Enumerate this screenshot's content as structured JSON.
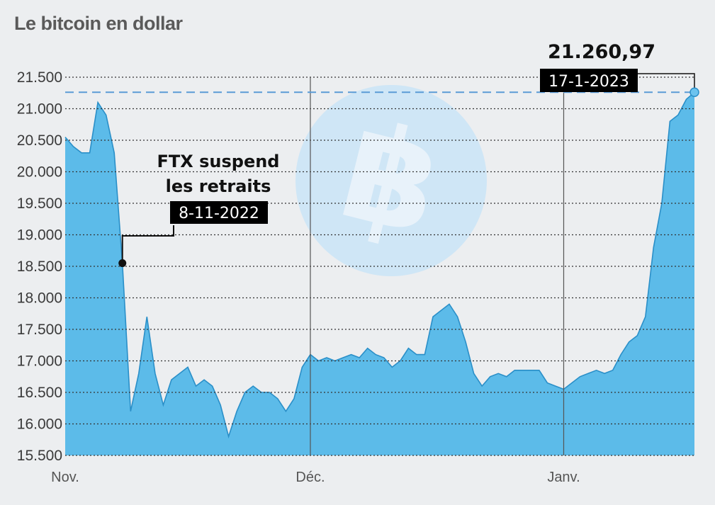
{
  "chart_data": {
    "type": "area",
    "title": "Le bitcoin en dollar",
    "ylim": [
      15500,
      21700
    ],
    "yticks": [
      21500,
      21000,
      20500,
      20000,
      19500,
      19000,
      18500,
      18000,
      17500,
      17000,
      16500,
      16000,
      15500
    ],
    "ytick_labels": [
      "21.500",
      "21.000",
      "20.500",
      "20.000",
      "19.500",
      "19.000",
      "18.500",
      "18.000",
      "17.500",
      "17.000",
      "16.500",
      "16.000",
      "15.500"
    ],
    "xlim": [
      "2022-11-01",
      "2023-01-17"
    ],
    "xticks": [
      {
        "date": "2022-11-01",
        "label": "Nov."
      },
      {
        "date": "2022-12-01",
        "label": "Déc."
      },
      {
        "date": "2023-01-01",
        "label": "Janv."
      }
    ],
    "series": [
      {
        "points": [
          [
            "2022-11-01",
            20550
          ],
          [
            "2022-11-02",
            20400
          ],
          [
            "2022-11-03",
            20300
          ],
          [
            "2022-11-04",
            20300
          ],
          [
            "2022-11-05",
            21100
          ],
          [
            "2022-11-06",
            20900
          ],
          [
            "2022-11-07",
            20300
          ],
          [
            "2022-11-08",
            18550
          ],
          [
            "2022-11-09",
            16200
          ],
          [
            "2022-11-10",
            16800
          ],
          [
            "2022-11-11",
            17700
          ],
          [
            "2022-11-12",
            16800
          ],
          [
            "2022-11-13",
            16300
          ],
          [
            "2022-11-14",
            16700
          ],
          [
            "2022-11-15",
            16800
          ],
          [
            "2022-11-16",
            16900
          ],
          [
            "2022-11-17",
            16600
          ],
          [
            "2022-11-18",
            16700
          ],
          [
            "2022-11-19",
            16600
          ],
          [
            "2022-11-20",
            16300
          ],
          [
            "2022-11-21",
            15800
          ],
          [
            "2022-11-22",
            16200
          ],
          [
            "2022-11-23",
            16500
          ],
          [
            "2022-11-24",
            16600
          ],
          [
            "2022-11-25",
            16500
          ],
          [
            "2022-11-26",
            16500
          ],
          [
            "2022-11-27",
            16400
          ],
          [
            "2022-11-28",
            16200
          ],
          [
            "2022-11-29",
            16400
          ],
          [
            "2022-11-30",
            16900
          ],
          [
            "2022-12-01",
            17100
          ],
          [
            "2022-12-02",
            17000
          ],
          [
            "2022-12-03",
            17050
          ],
          [
            "2022-12-04",
            17000
          ],
          [
            "2022-12-05",
            17050
          ],
          [
            "2022-12-06",
            17100
          ],
          [
            "2022-12-07",
            17050
          ],
          [
            "2022-12-08",
            17200
          ],
          [
            "2022-12-09",
            17100
          ],
          [
            "2022-12-10",
            17050
          ],
          [
            "2022-12-11",
            16900
          ],
          [
            "2022-12-12",
            17000
          ],
          [
            "2022-12-13",
            17200
          ],
          [
            "2022-12-14",
            17100
          ],
          [
            "2022-12-15",
            17100
          ],
          [
            "2022-12-16",
            17700
          ],
          [
            "2022-12-17",
            17800
          ],
          [
            "2022-12-18",
            17900
          ],
          [
            "2022-12-19",
            17700
          ],
          [
            "2022-12-20",
            17300
          ],
          [
            "2022-12-21",
            16800
          ],
          [
            "2022-12-22",
            16600
          ],
          [
            "2022-12-23",
            16750
          ],
          [
            "2022-12-24",
            16800
          ],
          [
            "2022-12-25",
            16750
          ],
          [
            "2022-12-26",
            16850
          ],
          [
            "2022-12-27",
            16850
          ],
          [
            "2022-12-28",
            16850
          ],
          [
            "2022-12-29",
            16850
          ],
          [
            "2022-12-30",
            16650
          ],
          [
            "2022-12-31",
            16600
          ],
          [
            "2023-01-01",
            16550
          ],
          [
            "2023-01-02",
            16650
          ],
          [
            "2023-01-03",
            16750
          ],
          [
            "2023-01-04",
            16800
          ],
          [
            "2023-01-05",
            16850
          ],
          [
            "2023-01-06",
            16800
          ],
          [
            "2023-01-07",
            16850
          ],
          [
            "2023-01-08",
            17100
          ],
          [
            "2023-01-09",
            17300
          ],
          [
            "2023-01-10",
            17400
          ],
          [
            "2023-01-11",
            17700
          ],
          [
            "2023-01-12",
            18800
          ],
          [
            "2023-01-13",
            19500
          ],
          [
            "2023-01-14",
            20800
          ],
          [
            "2023-01-15",
            20900
          ],
          [
            "2023-01-16",
            21150
          ],
          [
            "2023-01-17",
            21260.97
          ]
        ]
      }
    ],
    "annotations": [
      {
        "date": "2022-11-08",
        "value": 18550,
        "lines": [
          "FTX suspend",
          "les retraits"
        ],
        "date_label": "8-11-2022"
      },
      {
        "date": "2023-01-17",
        "value": 21260.97,
        "value_label": "21.260,97",
        "date_label": "17-1-2023"
      }
    ],
    "grid": true,
    "colors": {
      "fill": "#4fb6e8",
      "line": "#2a8fc8",
      "reference_line": "#5b9bd5",
      "grid": "#333333",
      "background": "#eceef0",
      "label_box": "#000000",
      "logo_circle": "#cfe6f6"
    },
    "watermark_icon": "bitcoin-logo-icon"
  }
}
